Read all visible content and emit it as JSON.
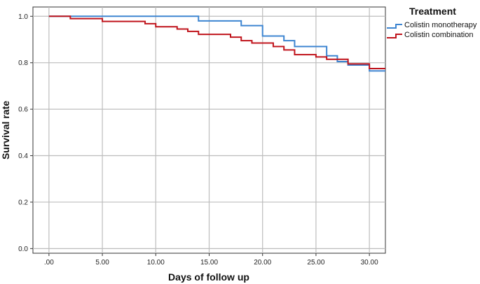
{
  "chart_data": {
    "type": "line",
    "xlabel": "Days of follow up",
    "ylabel": "Survival rate",
    "xlim": [
      -1.5,
      31.5
    ],
    "ylim": [
      -0.02,
      1.04
    ],
    "x_ticks": [
      0,
      5,
      10,
      15,
      20,
      25,
      30
    ],
    "x_tick_labels": [
      ".00",
      "5.00",
      "10.00",
      "15.00",
      "20.00",
      "25.00",
      "30.00"
    ],
    "y_ticks": [
      0,
      0.2,
      0.4,
      0.6,
      0.8,
      1.0
    ],
    "y_tick_labels": [
      "0.0",
      "0.2",
      "0.4",
      "0.6",
      "0.8",
      "1.0"
    ],
    "grid": true,
    "legend_title": "Treatment",
    "legend_position": "top-right",
    "series": [
      {
        "name": "Colistin monotherapy",
        "color": "#3d85d1",
        "step": true,
        "x": [
          0,
          14,
          18,
          20,
          22,
          23,
          26,
          27,
          28,
          30,
          31.5
        ],
        "y": [
          1.0,
          0.98,
          0.96,
          0.915,
          0.895,
          0.87,
          0.83,
          0.805,
          0.79,
          0.765,
          0.765
        ]
      },
      {
        "name": "Colistin combination",
        "color": "#c0141c",
        "step": true,
        "x": [
          0,
          2,
          5,
          9,
          10,
          12,
          13,
          14,
          17,
          18,
          19,
          21,
          22,
          23,
          25,
          26,
          28,
          30,
          31.5
        ],
        "y": [
          1.0,
          0.99,
          0.978,
          0.968,
          0.955,
          0.945,
          0.935,
          0.922,
          0.91,
          0.895,
          0.885,
          0.87,
          0.855,
          0.835,
          0.825,
          0.815,
          0.795,
          0.775,
          0.775
        ]
      }
    ]
  }
}
